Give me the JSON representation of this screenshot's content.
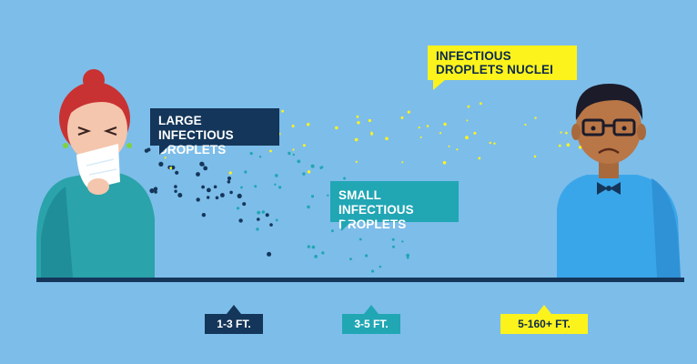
{
  "callouts": {
    "large": "LARGE INFECTIOUS DROPLETS",
    "small": "SMALL INFECTIOUS DROPLETS",
    "nuclei": "INFECTIOUS DROPLETS NUCLEI"
  },
  "distances": {
    "large": "1-3 FT.",
    "small": "3-5 FT.",
    "nuclei": "5-160+ FT."
  },
  "colors": {
    "background": "#7dbde9",
    "large_droplets": "#14365a",
    "small_droplets": "#21a6b4",
    "nuclei_droplets": "#fdf31c",
    "ground": "#14365a"
  },
  "figures": {
    "left": "sneezing-woman-icon",
    "right": "man-with-glasses-icon"
  }
}
